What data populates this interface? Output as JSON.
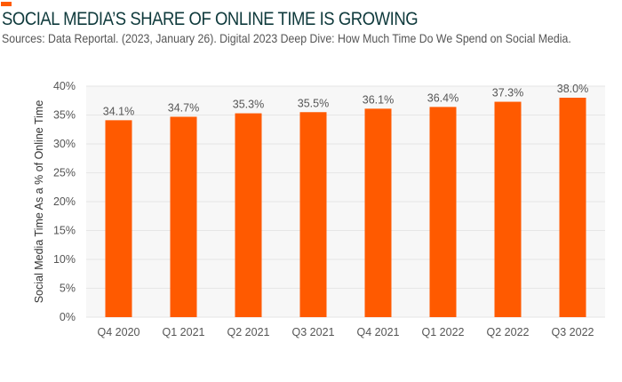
{
  "header": {
    "title": "SOCIAL MEDIA’S SHARE OF ONLINE TIME IS GROWING",
    "subtitle": "Sources: Data Reportal. (2023, January 26). Digital 2023 Deep Dive: How Much Time Do We Spend on Social Media."
  },
  "colors": {
    "bar": "#ff5a00",
    "accent": "#ff5a00",
    "title": "#0f3a3c",
    "plot_bg": "#f7f7f7"
  },
  "chart_data": {
    "type": "bar",
    "title": "SOCIAL MEDIA’S SHARE OF ONLINE TIME IS GROWING",
    "xlabel": "",
    "ylabel": "Social Media Time As a % of Online Time",
    "categories": [
      "Q4 2020",
      "Q1 2021",
      "Q2 2021",
      "Q3 2021",
      "Q4 2021",
      "Q1 2022",
      "Q2 2022",
      "Q3 2022"
    ],
    "values": [
      34.1,
      34.7,
      35.3,
      35.5,
      36.1,
      36.4,
      37.3,
      38.0
    ],
    "data_labels": [
      "34.1%",
      "34.7%",
      "35.3%",
      "35.5%",
      "36.1%",
      "36.4%",
      "37.3%",
      "38.0%"
    ],
    "yticks": [
      "0%",
      "5%",
      "10%",
      "15%",
      "20%",
      "25%",
      "30%",
      "35%",
      "40%"
    ],
    "ylim": [
      0,
      40
    ],
    "grid": true
  }
}
